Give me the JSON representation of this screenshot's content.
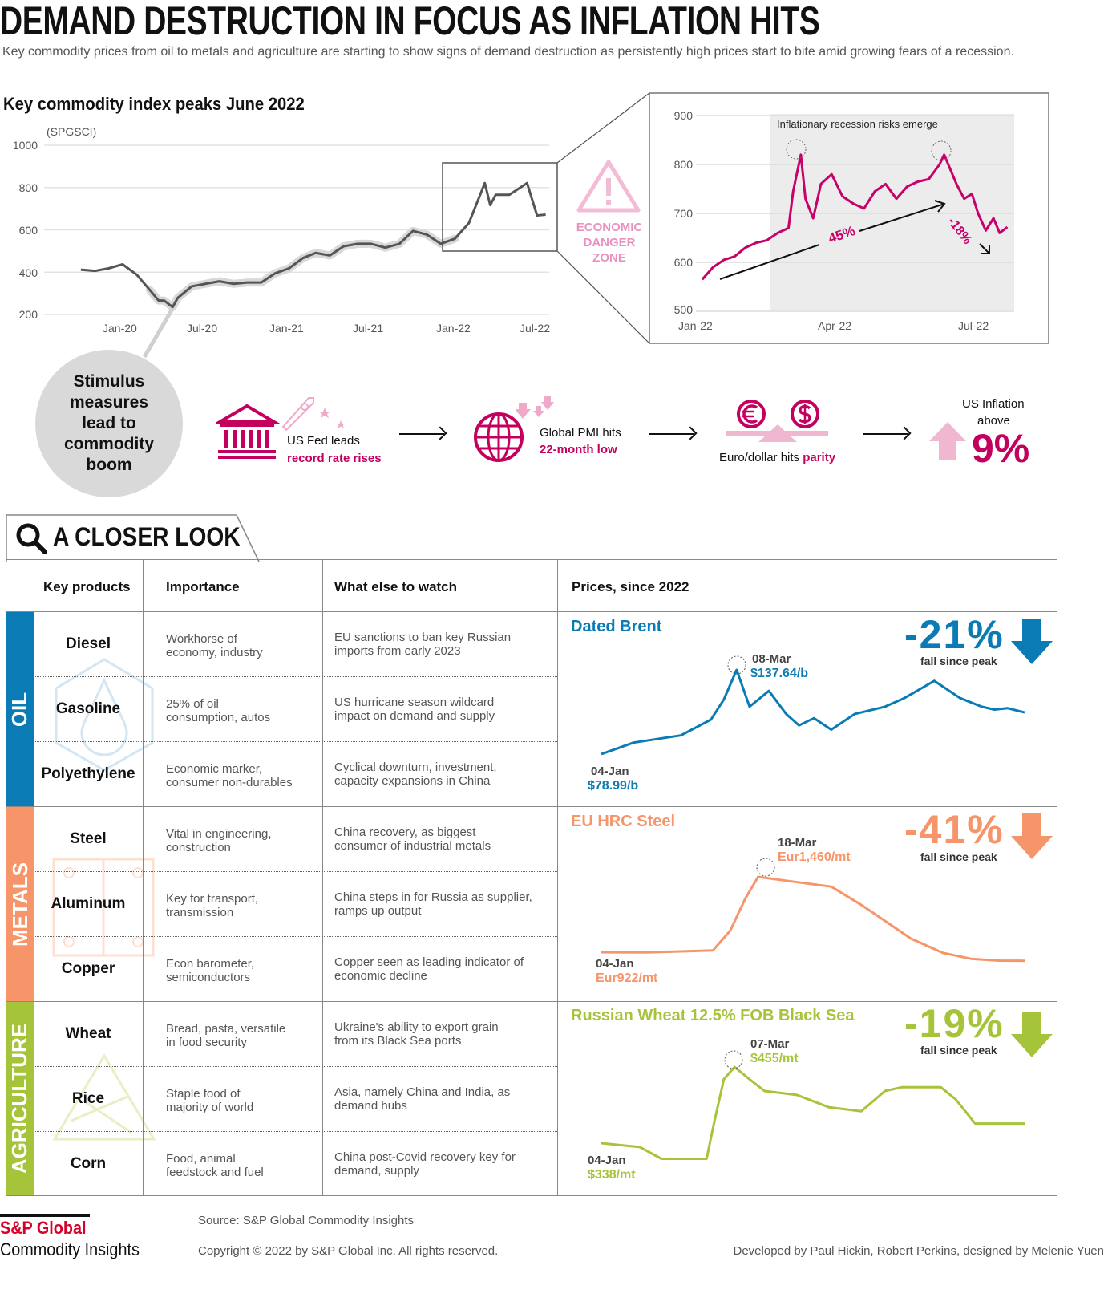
{
  "header": {
    "title": "DEMAND DESTRUCTION IN FOCUS AS INFLATION HITS",
    "subtitle": "Key commodity prices from oil to metals and agriculture are starting to show signs of demand destruction as persistently high prices start to bite amid growing fears of a recession."
  },
  "danger": {
    "lines": [
      "ECONOMIC",
      "DANGER",
      "ZONE"
    ],
    "icon": "warning-triangle-icon"
  },
  "stimulus": {
    "text": "Stimulus measures lead to commodity boom"
  },
  "events": {
    "fed": {
      "line1": "US Fed leads",
      "line2": "record rate rises",
      "icon": "bank-building-icon"
    },
    "pmi": {
      "line1": "Global PMI hits",
      "line2": "22-month low",
      "icon": "globe-icon"
    },
    "fx": {
      "line1": "Euro/dollar hits ",
      "line2": "parity",
      "icons": [
        "euro-icon",
        "dollar-icon"
      ]
    },
    "inflation": {
      "line1": "US Inflation",
      "line2": "above",
      "value": "9%"
    }
  },
  "closer_look": {
    "title": "A CLOSER LOOK",
    "headers": [
      "Key products",
      "Importance",
      "What else to watch",
      "Prices, since 2022"
    ],
    "groups": [
      {
        "name": "OIL",
        "color": "#0a7bb5",
        "rows": [
          {
            "product": "Diesel",
            "importance": "Workhorse of\neconomy, industry",
            "watch": "EU sanctions to ban key Russian\nimports from early 2023"
          },
          {
            "product": "Gasoline",
            "importance": "25% of oil\nconsumption, autos",
            "watch": "US hurricane season wildcard\nimpact on demand and supply"
          },
          {
            "product": "Polyethylene",
            "importance": "Economic marker,\nconsumer non-durables",
            "watch": "Cyclical downturn, investment,\ncapacity expansions in China"
          }
        ]
      },
      {
        "name": "METALS",
        "color": "#f6956a",
        "rows": [
          {
            "product": "Steel",
            "importance": "Vital in engineering,\nconstruction",
            "watch": "China recovery, as biggest\nconsumer of industrial metals"
          },
          {
            "product": "Aluminum",
            "importance": "Key for transport,\ntransmission",
            "watch": "China steps in for Russia as supplier,\nramps up output"
          },
          {
            "product": "Copper",
            "importance": "Econ barometer,\nsemiconductors",
            "watch": "Copper seen as leading indicator of\neconomic decline"
          }
        ]
      },
      {
        "name": "AGRICULTURE",
        "color": "#a6c43a",
        "rows": [
          {
            "product": "Wheat",
            "importance": "Bread, pasta, versatile\nin food security",
            "watch": "Ukraine's ability to export grain\nfrom its Black Sea ports"
          },
          {
            "product": "Rice",
            "importance": "Staple food of\nmajority of world",
            "watch": "Asia, namely China and India, as\ndemand hubs"
          },
          {
            "product": "Corn",
            "importance": "Food, animal\nfeedstock and fuel",
            "watch": "China post-Covid recovery key for\ndemand, supply"
          }
        ]
      }
    ]
  },
  "footer": {
    "logo_line1": "S&P Global",
    "logo_line2": "Commodity Insights",
    "source": "Source: S&P Global Commodity Insights",
    "copyright": "Copyright © 2022 by S&P Global Inc. All rights reserved.",
    "credits": "Developed by Paul Hickin, Robert Perkins,  designed by Melenie Yuen"
  },
  "chart_data": [
    {
      "type": "line",
      "title": "Key commodity index peaks June 2022",
      "ylabel": "(SPGSCI)",
      "ylim": [
        200,
        1000
      ],
      "yticks": [
        1000,
        800,
        600,
        400,
        200
      ],
      "xticks": [
        "Jan-20",
        "Jul-20",
        "Jan-21",
        "Jul-21",
        "Jan-22",
        "Jul-22"
      ],
      "grid": true,
      "color": "#555555",
      "x": [
        "2019-10",
        "2019-11",
        "2019-12",
        "2020-01",
        "2020-02",
        "2020-03",
        "2020-03-20",
        "2020-04",
        "2020-04-20",
        "2020-05",
        "2020-06",
        "2020-07",
        "2020-08",
        "2020-09",
        "2020-10",
        "2020-11",
        "2020-12",
        "2021-01",
        "2021-02",
        "2021-03",
        "2021-04",
        "2021-05",
        "2021-06",
        "2021-07",
        "2021-08",
        "2021-09",
        "2021-10",
        "2021-11",
        "2021-12",
        "2022-01",
        "2022-02",
        "2022-03-08",
        "2022-03-20",
        "2022-04",
        "2022-05",
        "2022-06-09",
        "2022-07",
        "2022-07-20"
      ],
      "y": [
        412,
        406,
        418,
        437,
        388,
        315,
        266,
        266,
        235,
        278,
        333,
        345,
        357,
        345,
        351,
        351,
        394,
        418,
        467,
        491,
        479,
        522,
        534,
        534,
        516,
        534,
        595,
        577,
        534,
        558,
        632,
        821,
        717,
        766,
        766,
        821,
        668,
        672
      ]
    },
    {
      "type": "line",
      "ylim": [
        500,
        900
      ],
      "yticks": [
        900,
        800,
        700,
        600,
        500
      ],
      "xticks": [
        "Jan-22",
        "Apr-22",
        "Jul-22"
      ],
      "grid": true,
      "color": "#c8006a",
      "shaded_region_label": "Inflationary recession risks emerge",
      "annotations": [
        "45%",
        "-18%"
      ],
      "x": [
        "2022-01-03",
        "2022-01-10",
        "2022-01-17",
        "2022-01-24",
        "2022-01-31",
        "2022-02-07",
        "2022-02-14",
        "2022-02-21",
        "2022-02-28",
        "2022-03-03",
        "2022-03-08",
        "2022-03-11",
        "2022-03-16",
        "2022-03-21",
        "2022-03-28",
        "2022-04-04",
        "2022-04-11",
        "2022-04-18",
        "2022-04-25",
        "2022-05-02",
        "2022-05-09",
        "2022-05-16",
        "2022-05-23",
        "2022-05-30",
        "2022-06-06",
        "2022-06-09",
        "2022-06-13",
        "2022-06-17",
        "2022-06-22",
        "2022-06-27",
        "2022-07-01",
        "2022-07-06",
        "2022-07-11",
        "2022-07-15",
        "2022-07-20"
      ],
      "y": [
        565,
        590,
        605,
        612,
        630,
        640,
        645,
        660,
        670,
        745,
        820,
        730,
        690,
        760,
        780,
        735,
        720,
        710,
        745,
        760,
        730,
        755,
        765,
        770,
        800,
        820,
        790,
        760,
        730,
        740,
        700,
        665,
        690,
        660,
        672
      ]
    },
    {
      "type": "line",
      "title": "Dated Brent",
      "color": "#0a7bb5",
      "change": "-21%",
      "change_label": "fall since peak",
      "start_label": "04-Jan",
      "start_value": "$78.99/b",
      "peak_label": "08-Mar",
      "peak_value": "$137.64/b",
      "x": [
        "2022-01-04",
        "2022-01-19",
        "2022-02-10",
        "2022-02-24",
        "2022-03-02",
        "2022-03-08",
        "2022-03-14",
        "2022-03-23",
        "2022-03-31",
        "2022-04-06",
        "2022-04-13",
        "2022-04-21",
        "2022-05-02",
        "2022-05-16",
        "2022-05-25",
        "2022-06-08",
        "2022-06-20",
        "2022-06-30",
        "2022-07-06",
        "2022-07-12",
        "2022-07-20"
      ],
      "y": [
        78.99,
        87,
        92,
        103,
        117,
        137.64,
        112,
        123,
        107,
        99,
        104,
        96,
        107,
        112,
        118,
        130,
        118,
        112,
        110,
        111,
        108
      ]
    },
    {
      "type": "line",
      "title": "EU HRC Steel",
      "color": "#f6956a",
      "change": "-41%",
      "change_label": "fall since peak",
      "start_label": "04-Jan",
      "start_value": "Eur922/mt",
      "peak_label": "18-Mar",
      "peak_value": "Eur1,460/mt",
      "x": [
        "2022-01-04",
        "2022-01-25",
        "2022-02-10",
        "2022-02-25",
        "2022-03-05",
        "2022-03-12",
        "2022-03-18",
        "2022-04-01",
        "2022-04-21",
        "2022-05-06",
        "2022-05-17",
        "2022-05-28",
        "2022-06-12",
        "2022-06-25",
        "2022-07-08",
        "2022-07-20"
      ],
      "y": [
        922,
        920,
        928,
        935,
        1076,
        1305,
        1460,
        1430,
        1390,
        1250,
        1135,
        1020,
        917,
        875,
        862,
        861
      ]
    },
    {
      "type": "line",
      "title": "Russian Wheat 12.5% FOB Black Sea",
      "color": "#a6c43a",
      "change": "-19%",
      "change_label": "fall since peak",
      "start_label": "04-Jan",
      "start_value": "$338/mt",
      "peak_label": "07-Mar",
      "peak_value": "$455/mt",
      "x": [
        "2022-01-04",
        "2022-01-22",
        "2022-02-01",
        "2022-02-22",
        "2022-02-25",
        "2022-03-02",
        "2022-03-07",
        "2022-03-14",
        "2022-03-21",
        "2022-04-05",
        "2022-04-20",
        "2022-05-05",
        "2022-05-16",
        "2022-05-24",
        "2022-06-11",
        "2022-06-18",
        "2022-06-27",
        "2022-07-20"
      ],
      "y": [
        338,
        332,
        314,
        314,
        362,
        436,
        455,
        436,
        418,
        412,
        393,
        387,
        418,
        424,
        424,
        405,
        368,
        368
      ]
    }
  ]
}
